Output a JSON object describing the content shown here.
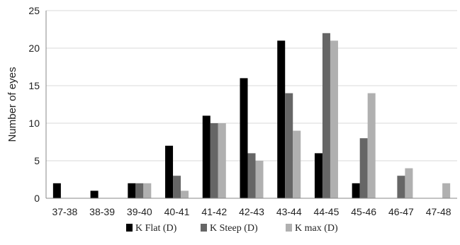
{
  "chart_data": {
    "type": "bar",
    "title": "",
    "xlabel": "",
    "ylabel": "Number of eyes",
    "ylim": [
      0,
      25
    ],
    "yticks": [
      0,
      5,
      10,
      15,
      20,
      25
    ],
    "grid": "horizontal",
    "legend_position": "bottom",
    "categories": [
      "37-38",
      "38-39",
      "39-40",
      "40-41",
      "41-42",
      "42-43",
      "43-44",
      "44-45",
      "45-46",
      "46-47",
      "47-48"
    ],
    "series": [
      {
        "name": "K Flat (D)",
        "color": "#000000",
        "values": [
          2,
          1,
          2,
          7,
          11,
          16,
          21,
          6,
          2,
          0,
          0
        ]
      },
      {
        "name": "K Steep (D)",
        "color": "#666666",
        "values": [
          0,
          0,
          2,
          3,
          10,
          6,
          14,
          22,
          8,
          3,
          0
        ]
      },
      {
        "name": "K max (D)",
        "color": "#b0b0b0",
        "values": [
          0,
          0,
          2,
          1,
          10,
          5,
          9,
          21,
          14,
          4,
          2
        ]
      }
    ]
  }
}
